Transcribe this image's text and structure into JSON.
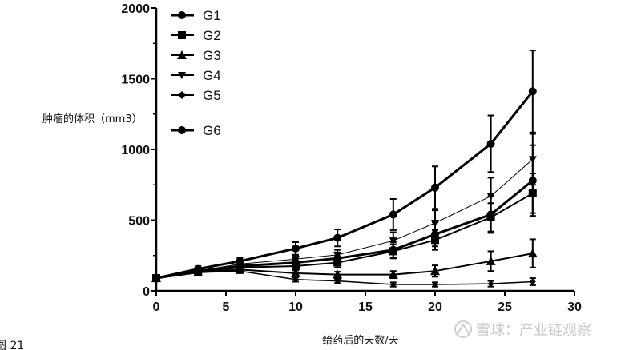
{
  "figure_label": "图 21",
  "watermark": {
    "text": "雪球：产业链观察"
  },
  "chart_data": {
    "type": "line",
    "ylabel": "肿瘤的体积（mm3）",
    "xlabel": "给药后的天数/天",
    "xlim": [
      0,
      30
    ],
    "ylim": [
      0,
      2000
    ],
    "x_ticks": [
      0,
      5,
      10,
      15,
      20,
      25,
      30
    ],
    "y_ticks": [
      0,
      500,
      1000,
      1500,
      2000
    ],
    "x_tick_labels": [
      "0",
      "5",
      "10",
      "15",
      "20",
      "25",
      "30"
    ],
    "y_tick_labels": [
      "0",
      "500",
      "1000",
      "1500",
      "2000"
    ],
    "grid": false,
    "legend_position": "top-left",
    "series": [
      {
        "name": "G1",
        "marker": "circle",
        "line_width": 3,
        "x": [
          0,
          3,
          6,
          10,
          13,
          17,
          20,
          24,
          27
        ],
        "y": [
          90,
          155,
          210,
          300,
          375,
          540,
          730,
          1040,
          1410
        ],
        "err": [
          20,
          20,
          25,
          45,
          60,
          110,
          150,
          200,
          290
        ]
      },
      {
        "name": "G2",
        "marker": "square",
        "line_width": 2,
        "x": [
          0,
          3,
          6,
          10,
          13,
          17,
          20,
          24,
          27
        ],
        "y": [
          90,
          130,
          165,
          175,
          200,
          280,
          360,
          520,
          690
        ],
        "err": [
          15,
          15,
          20,
          30,
          35,
          50,
          70,
          100,
          140
        ]
      },
      {
        "name": "G3",
        "marker": "triangle",
        "line_width": 2,
        "x": [
          0,
          3,
          6,
          10,
          13,
          17,
          20,
          24,
          27
        ],
        "y": [
          90,
          130,
          150,
          125,
          115,
          115,
          140,
          210,
          265
        ],
        "err": [
          15,
          15,
          20,
          20,
          20,
          25,
          40,
          70,
          100
        ]
      },
      {
        "name": "G4",
        "marker": "triangle-down",
        "line_width": 1,
        "x": [
          0,
          3,
          6,
          10,
          13,
          17,
          20,
          24,
          27
        ],
        "y": [
          90,
          140,
          190,
          225,
          255,
          355,
          480,
          670,
          930
        ],
        "err": [
          15,
          15,
          20,
          30,
          35,
          60,
          90,
          130,
          180
        ]
      },
      {
        "name": "G5",
        "marker": "diamond",
        "line_width": 1.5,
        "x": [
          0,
          3,
          6,
          10,
          13,
          17,
          20,
          24,
          27
        ],
        "y": [
          90,
          130,
          140,
          80,
          70,
          45,
          45,
          50,
          65
        ],
        "err": [
          10,
          10,
          15,
          15,
          15,
          15,
          15,
          20,
          25
        ]
      },
      {
        "name": "G6",
        "marker": "circle",
        "line_width": 3,
        "x": [
          0,
          3,
          6,
          10,
          13,
          17,
          20,
          24,
          27
        ],
        "y": [
          90,
          140,
          175,
          200,
          230,
          290,
          400,
          540,
          780
        ],
        "err": [
          15,
          15,
          20,
          30,
          35,
          55,
          85,
          130,
          250
        ]
      }
    ]
  }
}
